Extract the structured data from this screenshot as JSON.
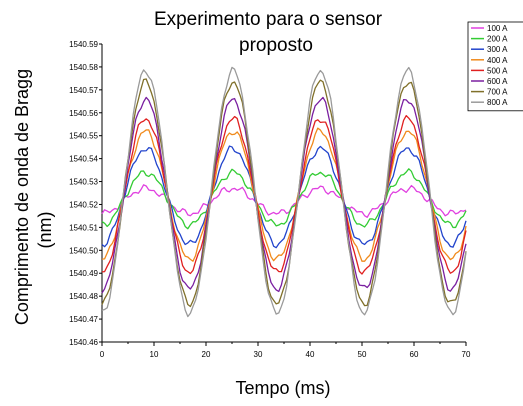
{
  "chart_data": {
    "type": "line",
    "title_line1": "Experimento para o sensor",
    "title_line2": "proposto",
    "xlabel": "Tempo (ms)",
    "ylabel_line1": "Comprimento de onda de Bragg",
    "ylabel_line2": "(nm)",
    "xlim": [
      0,
      70
    ],
    "ylim": [
      1540.46,
      1540.59
    ],
    "xticks": [
      0,
      10,
      20,
      30,
      40,
      50,
      60,
      70
    ],
    "yticks": [
      1540.46,
      1540.47,
      1540.48,
      1540.49,
      1540.5,
      1540.51,
      1540.52,
      1540.53,
      1540.54,
      1540.55,
      1540.56,
      1540.57,
      1540.58,
      1540.59
    ],
    "legend_position": "top-right",
    "period_ms": 16.8,
    "series": [
      {
        "name": "100 A",
        "color": "#e040e0",
        "center": 1540.5215,
        "amplitude": 0.0055,
        "phase_ms": 8.4
      },
      {
        "name": "200 A",
        "color": "#33cc33",
        "center": 1540.5225,
        "amplitude": 0.0115,
        "phase_ms": 8.4
      },
      {
        "name": "300 A",
        "color": "#2244cc",
        "center": 1540.5235,
        "amplitude": 0.021,
        "phase_ms": 8.4
      },
      {
        "name": "400 A",
        "color": "#f08a1c",
        "center": 1540.524,
        "amplitude": 0.028,
        "phase_ms": 8.4
      },
      {
        "name": "500 A",
        "color": "#e02020",
        "center": 1540.524,
        "amplitude": 0.0335,
        "phase_ms": 8.4
      },
      {
        "name": "600 A",
        "color": "#7a1fa0",
        "center": 1540.5245,
        "amplitude": 0.0415,
        "phase_ms": 8.4
      },
      {
        "name": "700 A",
        "color": "#80702a",
        "center": 1540.525,
        "amplitude": 0.0485,
        "phase_ms": 8.4
      },
      {
        "name": "800 A",
        "color": "#9a9a9a",
        "center": 1540.5255,
        "amplitude": 0.053,
        "phase_ms": 8.4
      }
    ]
  }
}
